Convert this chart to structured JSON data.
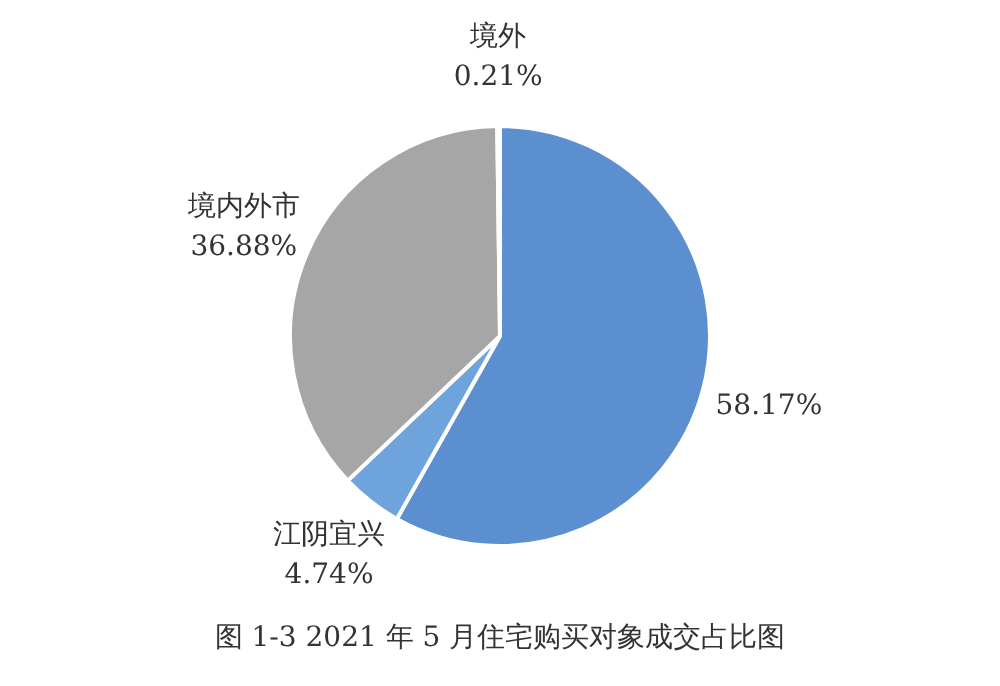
{
  "chart_data": {
    "type": "pie",
    "categories": [
      null,
      "江阴宜兴",
      "境内外市",
      "境外"
    ],
    "values": [
      58.17,
      4.74,
      36.88,
      0.21
    ],
    "value_labels": [
      "58.17%",
      "4.74%",
      "36.88%",
      "0.21%"
    ],
    "colors": [
      "#5b8fd0",
      "#6fa3dc",
      "#a6a6a6",
      "#e8a062"
    ],
    "legend": false,
    "annotations": [
      "图 1-3 2021 年 5 月住宅购买对象成交占比图"
    ]
  }
}
